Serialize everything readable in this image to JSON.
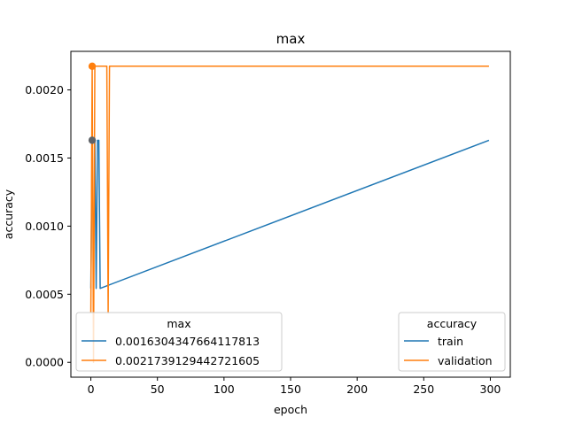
{
  "chart_data": {
    "type": "line",
    "title": "max",
    "xlabel": "epoch",
    "ylabel": "accuracy",
    "xlim": [
      -15,
      315
    ],
    "ylim": [
      -0.000109,
      0.002283
    ],
    "xticks": [
      0,
      50,
      100,
      150,
      200,
      250,
      300
    ],
    "xtick_labels": [
      "0",
      "50",
      "100",
      "150",
      "200",
      "250",
      "300"
    ],
    "yticks": [
      0.0,
      0.0005,
      0.001,
      0.0015,
      0.002
    ],
    "ytick_labels": [
      "0.0000",
      "0.0005",
      "0.0010",
      "0.0015",
      "0.0020"
    ],
    "grid": false,
    "series": [
      {
        "name": "train",
        "color": "#1f77b4",
        "x": [
          0,
          1,
          2,
          3,
          4,
          5,
          6,
          7,
          299
        ],
        "y": [
          0.000543,
          0.00163,
          0.00163,
          0.00163,
          0.000543,
          0.00163,
          0.00163,
          0.000543,
          0.00163
        ],
        "continue_from_x": 7,
        "max_marker": {
          "x": 1,
          "y": 0.0016304347664117813
        }
      },
      {
        "name": "validation",
        "color": "#ff7f0e",
        "x": [
          0,
          1,
          2,
          3,
          4,
          5,
          6,
          7,
          8,
          9,
          10,
          11,
          12,
          13,
          14,
          299
        ],
        "y": [
          0.000362,
          0.002174,
          0.0,
          0.002174,
          0.002174,
          0.002174,
          0.002174,
          0.002174,
          0.002174,
          0.002174,
          0.002174,
          0.002174,
          0.002174,
          0.000362,
          0.002174,
          0.002174
        ],
        "max_marker": {
          "x": 1,
          "y": 0.0021739129442721605
        }
      }
    ],
    "legend_max": {
      "title": "max",
      "entries": [
        "0.0016304347664117813",
        "0.0021739129442721605"
      ],
      "placement": "lower-left"
    },
    "legend_accuracy": {
      "title": "accuracy",
      "entries": [
        "train",
        "validation"
      ],
      "placement": "lower-right"
    }
  }
}
